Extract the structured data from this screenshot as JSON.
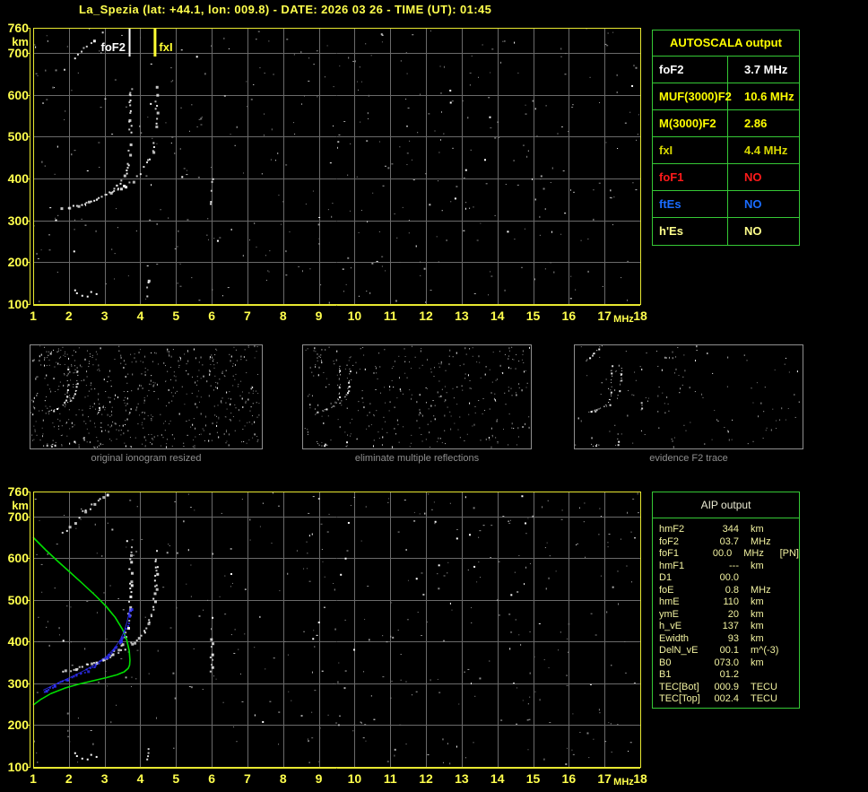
{
  "title": "La_Spezia (lat: +44.1, lon: 009.8) - DATE: 2026 03 26 - TIME (UT): 01:45",
  "colors": {
    "axis_yellow": "#ffff4d",
    "border_yellow": "#e8e830",
    "grid_gray": "#6a6a6a",
    "table_green": "#35c835",
    "trace_white": "#f2f2f2",
    "profile_green": "#00dd00",
    "fit_blue": "#3030ff",
    "caption_gray": "#8f8f8f"
  },
  "autoscala": {
    "header": "AUTOSCALA output",
    "rows": [
      {
        "label": "foF2",
        "value": "3.7 MHz",
        "color": "#ffffff"
      },
      {
        "label": "MUF(3000)F2",
        "value": "10.6 MHz",
        "color": "#ffff00"
      },
      {
        "label": "M(3000)F2",
        "value": "2.86",
        "color": "#ffff00"
      },
      {
        "label": "fxI",
        "value": "4.4 MHz",
        "color": "#d8d800"
      },
      {
        "label": "foF1",
        "value": "NO",
        "color": "#ff1a1a"
      },
      {
        "label": "ftEs",
        "value": "NO",
        "color": "#1a6cff"
      },
      {
        "label": "h'Es",
        "value": "NO",
        "color": "#ffff8c"
      }
    ]
  },
  "aip": {
    "header": "AIP output",
    "rows": [
      {
        "label": "hmF2",
        "value": "344",
        "unit": "km",
        "extra": ""
      },
      {
        "label": "foF2",
        "value": "03.7",
        "unit": "MHz",
        "extra": ""
      },
      {
        "label": "foF1",
        "value": "00.0",
        "unit": "MHz",
        "extra": "[PN]"
      },
      {
        "label": "hmF1",
        "value": "---",
        "unit": "km",
        "extra": ""
      },
      {
        "label": "D1",
        "value": "00.0",
        "unit": "",
        "extra": ""
      },
      {
        "label": "foE",
        "value": "0.8",
        "unit": "MHz",
        "extra": ""
      },
      {
        "label": "hmE",
        "value": "110",
        "unit": "km",
        "extra": ""
      },
      {
        "label": "ymE",
        "value": "20",
        "unit": "km",
        "extra": ""
      },
      {
        "label": "h_vE",
        "value": "137",
        "unit": "km",
        "extra": ""
      },
      {
        "label": "Ewidth",
        "value": "93",
        "unit": "km",
        "extra": ""
      },
      {
        "label": "DelN_vE",
        "value": "00.1",
        "unit": "m^(-3)",
        "extra": ""
      },
      {
        "label": "B0",
        "value": "073.0",
        "unit": "km",
        "extra": ""
      },
      {
        "label": "B1",
        "value": "01.2",
        "unit": "",
        "extra": ""
      },
      {
        "label": "TEC[Bot]",
        "value": "000.9",
        "unit": "TECU",
        "extra": ""
      },
      {
        "label": "TEC[Top]",
        "value": "002.4",
        "unit": "TECU",
        "extra": ""
      }
    ]
  },
  "thumbnails": [
    {
      "caption": "original ionogram resized",
      "noise": {
        "seed": 5,
        "gray": 520,
        "white": 90
      }
    },
    {
      "caption": "eliminate multiple reflections",
      "noise": {
        "seed": 6,
        "gray": 280,
        "white": 55
      }
    },
    {
      "caption": "evidence F2 trace",
      "noise": {
        "seed": 7,
        "gray": 100,
        "white": 28
      }
    }
  ],
  "chart_data": [
    {
      "type": "scatter",
      "title": "ionogram with autoscaled characteristics",
      "xlabel": "MHz",
      "ylabel": "km",
      "xlim": [
        1,
        18
      ],
      "ylim": [
        100,
        760
      ],
      "xticks": [
        1,
        2,
        3,
        4,
        5,
        6,
        7,
        8,
        9,
        10,
        11,
        12,
        13,
        14,
        15,
        16,
        17,
        18
      ],
      "yticks": [
        760,
        700,
        600,
        500,
        400,
        300,
        200,
        100
      ],
      "grid": true,
      "legend": "none",
      "markers": [
        {
          "label": "foF2",
          "freq": 3.7,
          "color": "#ffffff"
        },
        {
          "label": "fxI",
          "freq": 4.4,
          "color": "#ffff33"
        }
      ],
      "noise": {
        "seed": 11,
        "gray": 350,
        "white": 70
      },
      "series": [
        {
          "name": "F2-O-trace",
          "style": "dots",
          "color": "#f2f2f2",
          "points": [
            [
              1.78,
              330
            ],
            [
              2.0,
              334
            ],
            [
              2.25,
              339
            ],
            [
              2.5,
              345
            ],
            [
              2.75,
              352
            ],
            [
              3.0,
              361
            ],
            [
              3.2,
              372
            ],
            [
              3.35,
              384
            ],
            [
              3.48,
              398
            ],
            [
              3.57,
              415
            ],
            [
              3.63,
              436
            ],
            [
              3.67,
              462
            ],
            [
              3.69,
              495
            ],
            [
              3.7,
              540
            ],
            [
              3.71,
              600
            ],
            [
              3.71,
              628
            ]
          ]
        },
        {
          "name": "F2-X-trace",
          "style": "dots",
          "color": "#f2f2f2",
          "points": [
            [
              2.95,
              358
            ],
            [
              3.15,
              366
            ],
            [
              3.35,
              375
            ],
            [
              3.55,
              385
            ],
            [
              3.75,
              397
            ],
            [
              3.95,
              411
            ],
            [
              4.1,
              427
            ],
            [
              4.22,
              446
            ],
            [
              4.31,
              468
            ],
            [
              4.37,
              497
            ],
            [
              4.41,
              535
            ],
            [
              4.43,
              583
            ],
            [
              4.44,
              620
            ]
          ]
        },
        {
          "name": "oblique-echo",
          "style": "dots",
          "color": "#f2f2f2",
          "points": [
            [
              1.83,
              663
            ],
            [
              2.4,
              712
            ],
            [
              3.03,
              756
            ]
          ]
        },
        {
          "name": "spread-echo-6MHz",
          "style": "dots",
          "color": "#e8e8e8",
          "points": [
            [
              5.98,
              330
            ],
            [
              5.98,
              408
            ]
          ]
        },
        {
          "name": "Es-echo",
          "style": "dots",
          "color": "#f2f2f2",
          "points": [
            [
              4.2,
              118
            ],
            [
              4.2,
              160
            ]
          ]
        },
        {
          "name": "low-echo-dots",
          "style": "sparse",
          "color": "#ffffff",
          "points": [
            [
              2.15,
              135
            ],
            [
              2.2,
              128
            ],
            [
              2.35,
              122
            ],
            [
              2.5,
              120
            ],
            [
              2.6,
              131
            ],
            [
              2.75,
              126
            ]
          ]
        }
      ]
    },
    {
      "type": "scatter",
      "title": "ionogram with restored profile and fitted trace",
      "xlabel": "MHz",
      "ylabel": "km",
      "xlim": [
        1,
        18
      ],
      "ylim": [
        100,
        760
      ],
      "xticks": [
        1,
        2,
        3,
        4,
        5,
        6,
        7,
        8,
        9,
        10,
        11,
        12,
        13,
        14,
        15,
        16,
        17,
        18
      ],
      "yticks": [
        760,
        700,
        600,
        500,
        400,
        300,
        200,
        100
      ],
      "grid": true,
      "legend": "none",
      "markers": [],
      "noise": {
        "seed": 23,
        "gray": 350,
        "white": 70
      },
      "series": [
        {
          "name": "F2-O-trace",
          "style": "dots",
          "color": "#f2f2f2",
          "points": [
            [
              1.78,
              330
            ],
            [
              2.0,
              334
            ],
            [
              2.25,
              339
            ],
            [
              2.5,
              345
            ],
            [
              2.75,
              352
            ],
            [
              3.0,
              361
            ],
            [
              3.2,
              372
            ],
            [
              3.35,
              384
            ],
            [
              3.48,
              398
            ],
            [
              3.57,
              415
            ],
            [
              3.63,
              436
            ],
            [
              3.67,
              462
            ],
            [
              3.69,
              495
            ],
            [
              3.7,
              540
            ],
            [
              3.71,
              600
            ],
            [
              3.71,
              628
            ]
          ]
        },
        {
          "name": "F2-X-trace",
          "style": "dots",
          "color": "#f2f2f2",
          "points": [
            [
              2.95,
              358
            ],
            [
              3.15,
              366
            ],
            [
              3.35,
              375
            ],
            [
              3.55,
              385
            ],
            [
              3.75,
              397
            ],
            [
              3.95,
              411
            ],
            [
              4.1,
              427
            ],
            [
              4.22,
              446
            ],
            [
              4.31,
              468
            ],
            [
              4.37,
              497
            ],
            [
              4.41,
              535
            ],
            [
              4.43,
              583
            ],
            [
              4.44,
              620
            ]
          ]
        },
        {
          "name": "oblique-echo",
          "style": "dots",
          "color": "#f2f2f2",
          "points": [
            [
              1.83,
              663
            ],
            [
              2.4,
              712
            ],
            [
              3.03,
              756
            ]
          ]
        },
        {
          "name": "spread-echo-6MHz",
          "style": "dots",
          "color": "#e8e8e8",
          "points": [
            [
              5.98,
              330
            ],
            [
              5.98,
              408
            ]
          ]
        },
        {
          "name": "Es-echo",
          "style": "dots",
          "color": "#f2f2f2",
          "points": [
            [
              4.2,
              118
            ],
            [
              4.2,
              160
            ]
          ]
        },
        {
          "name": "low-echo-dots",
          "style": "sparse",
          "color": "#ffffff",
          "points": [
            [
              2.15,
              135
            ],
            [
              2.2,
              128
            ],
            [
              2.35,
              122
            ],
            [
              2.5,
              120
            ],
            [
              2.6,
              131
            ],
            [
              2.75,
              126
            ]
          ]
        },
        {
          "name": "electron-density-profile",
          "style": "line",
          "color": "#00dd00",
          "points": [
            [
              1.0,
              650
            ],
            [
              1.35,
              620
            ],
            [
              1.7,
              592
            ],
            [
              2.05,
              565
            ],
            [
              2.4,
              538
            ],
            [
              2.75,
              510
            ],
            [
              3.05,
              484
            ],
            [
              3.3,
              458
            ],
            [
              3.5,
              430
            ],
            [
              3.62,
              404
            ],
            [
              3.69,
              378
            ],
            [
              3.71,
              356
            ],
            [
              3.7,
              344
            ],
            [
              3.66,
              336
            ],
            [
              3.55,
              328
            ],
            [
              3.35,
              321
            ],
            [
              3.05,
              314
            ],
            [
              2.7,
              307
            ],
            [
              2.3,
              299
            ],
            [
              1.9,
              289
            ],
            [
              1.5,
              276
            ],
            [
              1.2,
              261
            ],
            [
              1.0,
              248
            ]
          ]
        },
        {
          "name": "fitted-trace",
          "style": "bluedots",
          "color": "#3030ff",
          "points": [
            [
              1.28,
              284
            ],
            [
              1.6,
              297
            ],
            [
              1.9,
              309
            ],
            [
              2.2,
              321
            ],
            [
              2.5,
              334
            ],
            [
              2.8,
              349
            ],
            [
              3.05,
              365
            ],
            [
              3.25,
              382
            ],
            [
              3.42,
              402
            ],
            [
              3.55,
              425
            ],
            [
              3.63,
              448
            ],
            [
              3.68,
              467
            ],
            [
              3.71,
              480
            ]
          ]
        }
      ]
    }
  ]
}
